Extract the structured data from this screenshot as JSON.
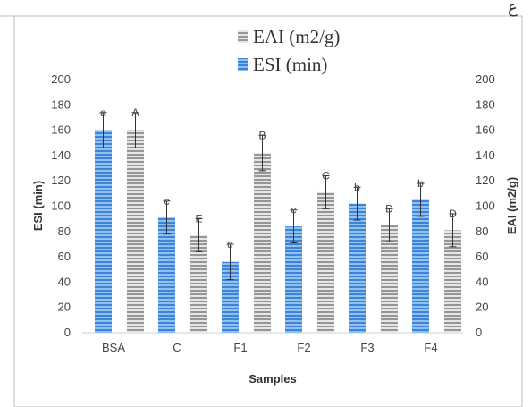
{
  "header_fragment": "ع",
  "legend": [
    {
      "label": "EAI (m2/g)",
      "series": "EAI"
    },
    {
      "label": "ESI (min)",
      "series": "ESI"
    }
  ],
  "chart_data": {
    "type": "bar",
    "title": "",
    "xlabel": "Samples",
    "ylabel": "ESI (min)",
    "y2label": "EAI (m2/g)",
    "categories": [
      "BSA",
      "C",
      "F1",
      "F2",
      "F3",
      "F4"
    ],
    "ylim": [
      0,
      200
    ],
    "y2lim": [
      0,
      200
    ],
    "yticks": [
      "0",
      "20",
      "40",
      "60",
      "80",
      "100",
      "120",
      "140",
      "160",
      "180",
      "200"
    ],
    "y2ticks": [
      "0",
      "20",
      "40",
      "60",
      "80",
      "100",
      "120",
      "140",
      "160",
      "180",
      "200"
    ],
    "grid": false,
    "legend_position": "top-center",
    "series": [
      {
        "name": "ESI (min)",
        "axis": "left",
        "color": "#4a8fdc",
        "values": [
          160,
          91,
          56,
          84,
          102,
          105
        ],
        "errors": [
          14,
          13,
          14,
          13,
          13,
          13
        ],
        "letters": [
          "a",
          "c",
          "d",
          "c",
          "b",
          "b"
        ]
      },
      {
        "name": "EAI (m2/g)",
        "axis": "right",
        "color": "#a6a6a6",
        "values": [
          160,
          77,
          142,
          111,
          85,
          81
        ],
        "errors": [
          14,
          13,
          14,
          13,
          13,
          13
        ],
        "letters": [
          "A",
          "E",
          "B",
          "C",
          "D",
          "D"
        ]
      }
    ]
  }
}
